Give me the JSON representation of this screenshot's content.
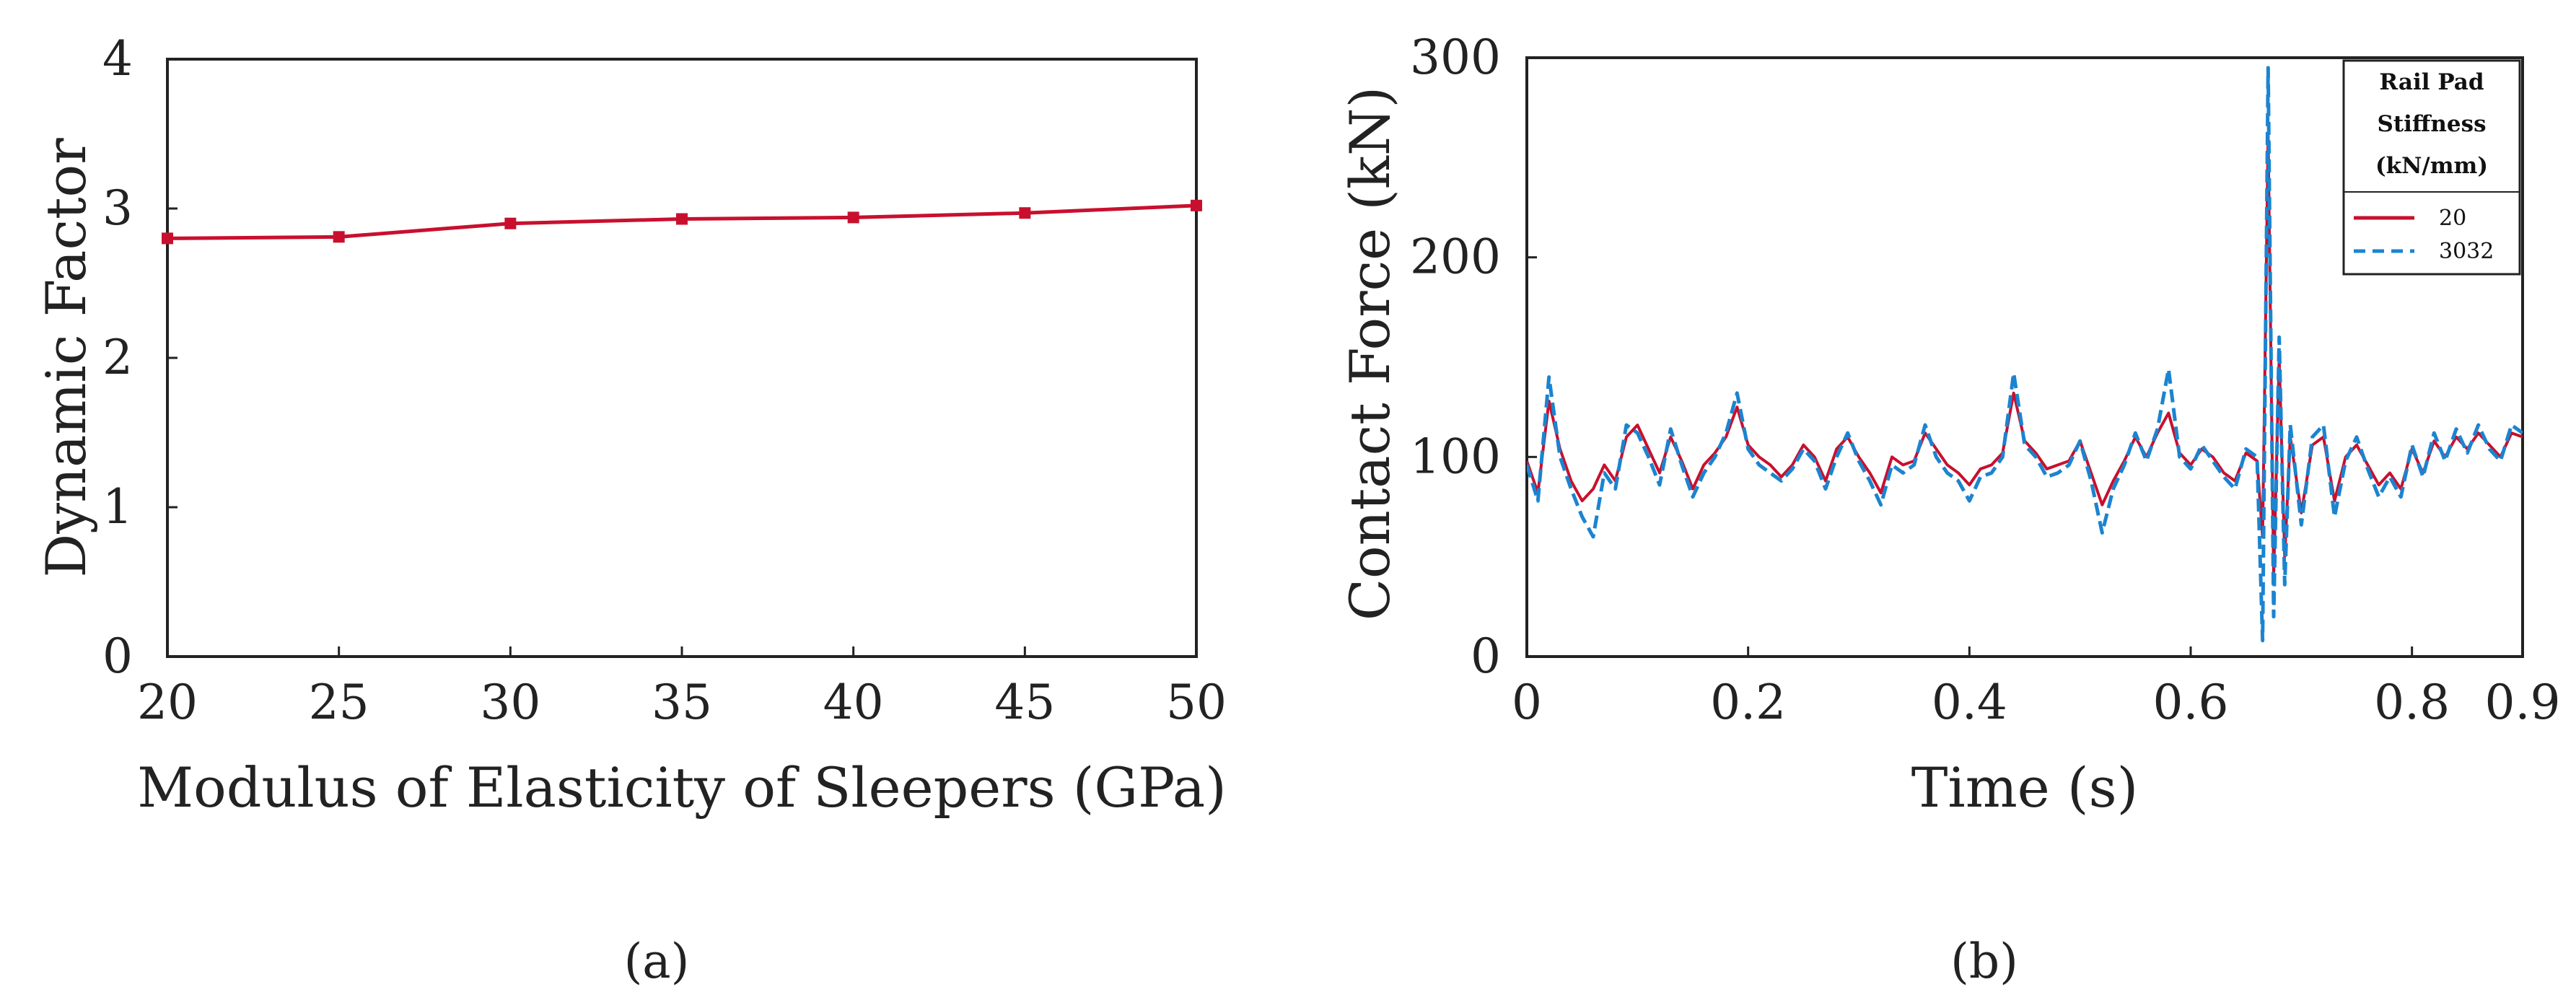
{
  "colors": {
    "series_red": "#C8102E",
    "series_blue": "#1B84D0",
    "axis": "#222222"
  },
  "chart_data": [
    {
      "type": "line",
      "caption": "(a)",
      "title": "",
      "xlabel": "Modulus of Elasticity of Sleepers (GPa)",
      "ylabel": "Dynamic Factor",
      "xlim": [
        20,
        50
      ],
      "ylim": [
        0,
        4
      ],
      "xticks": [
        "20",
        "25",
        "30",
        "35",
        "40",
        "45",
        "50"
      ],
      "yticks": [
        "0",
        "1",
        "2",
        "3",
        "4"
      ],
      "series": [
        {
          "name": "Dynamic Factor",
          "x": [
            20,
            25,
            30,
            35,
            40,
            45,
            50
          ],
          "values": [
            2.8,
            2.81,
            2.9,
            2.93,
            2.94,
            2.97,
            3.02
          ],
          "marker": "square"
        }
      ]
    },
    {
      "type": "line",
      "caption": "(b)",
      "title": "",
      "xlabel": "Time (s)",
      "ylabel": "Contact Force (kN)",
      "xlim": [
        0,
        0.9
      ],
      "ylim": [
        0,
        300
      ],
      "xticks": [
        "0",
        "0.2",
        "0.4",
        "0.6",
        "0.8",
        "0.9"
      ],
      "yticks": [
        "0",
        "100",
        "200",
        "300"
      ],
      "legend": {
        "title_lines": [
          "Rail Pad",
          "Stiffness",
          "(kN/mm)"
        ],
        "placement": "top-right"
      },
      "series": [
        {
          "name": "20",
          "style": "solid",
          "t": [
            0,
            0.01,
            0.02,
            0.03,
            0.04,
            0.05,
            0.06,
            0.07,
            0.08,
            0.09,
            0.1,
            0.11,
            0.12,
            0.13,
            0.14,
            0.15,
            0.16,
            0.17,
            0.18,
            0.19,
            0.2,
            0.21,
            0.22,
            0.23,
            0.24,
            0.25,
            0.26,
            0.27,
            0.28,
            0.29,
            0.3,
            0.31,
            0.32,
            0.33,
            0.34,
            0.35,
            0.36,
            0.37,
            0.38,
            0.39,
            0.4,
            0.41,
            0.42,
            0.43,
            0.44,
            0.45,
            0.46,
            0.47,
            0.48,
            0.49,
            0.5,
            0.51,
            0.52,
            0.53,
            0.54,
            0.55,
            0.56,
            0.57,
            0.58,
            0.59,
            0.6,
            0.61,
            0.62,
            0.63,
            0.64,
            0.65,
            0.66,
            0.665,
            0.67,
            0.675,
            0.68,
            0.685,
            0.69,
            0.7,
            0.71,
            0.72,
            0.73,
            0.74,
            0.75,
            0.76,
            0.77,
            0.78,
            0.79,
            0.8,
            0.81,
            0.82,
            0.83,
            0.84,
            0.85,
            0.86,
            0.87,
            0.88,
            0.89,
            0.9
          ],
          "values": [
            98,
            82,
            128,
            104,
            88,
            78,
            84,
            96,
            88,
            110,
            116,
            104,
            92,
            110,
            98,
            84,
            96,
            102,
            110,
            125,
            106,
            100,
            96,
            90,
            96,
            106,
            100,
            88,
            104,
            110,
            100,
            92,
            82,
            100,
            96,
            98,
            112,
            104,
            96,
            92,
            86,
            94,
            96,
            102,
            132,
            108,
            102,
            94,
            96,
            98,
            108,
            92,
            76,
            88,
            98,
            110,
            100,
            112,
            122,
            102,
            96,
            104,
            100,
            92,
            88,
            102,
            98,
            60,
            262,
            40,
            150,
            50,
            110,
            72,
            106,
            110,
            78,
            100,
            106,
            96,
            86,
            92,
            84,
            104,
            92,
            108,
            100,
            110,
            104,
            112,
            106,
            100,
            112,
            110
          ]
        },
        {
          "name": "3032",
          "style": "dashed",
          "t": [
            0,
            0.01,
            0.02,
            0.03,
            0.04,
            0.05,
            0.06,
            0.07,
            0.08,
            0.09,
            0.1,
            0.11,
            0.12,
            0.13,
            0.14,
            0.15,
            0.16,
            0.17,
            0.18,
            0.19,
            0.2,
            0.21,
            0.22,
            0.23,
            0.24,
            0.25,
            0.26,
            0.27,
            0.28,
            0.29,
            0.3,
            0.31,
            0.32,
            0.33,
            0.34,
            0.35,
            0.36,
            0.37,
            0.38,
            0.39,
            0.4,
            0.41,
            0.42,
            0.43,
            0.44,
            0.45,
            0.46,
            0.47,
            0.48,
            0.49,
            0.5,
            0.51,
            0.52,
            0.53,
            0.54,
            0.55,
            0.56,
            0.57,
            0.58,
            0.59,
            0.6,
            0.61,
            0.62,
            0.63,
            0.64,
            0.65,
            0.66,
            0.665,
            0.67,
            0.675,
            0.68,
            0.685,
            0.69,
            0.7,
            0.71,
            0.72,
            0.73,
            0.74,
            0.75,
            0.76,
            0.77,
            0.78,
            0.79,
            0.8,
            0.81,
            0.82,
            0.83,
            0.84,
            0.85,
            0.86,
            0.87,
            0.88,
            0.89,
            0.9
          ],
          "values": [
            96,
            78,
            140,
            100,
            84,
            70,
            60,
            92,
            84,
            116,
            112,
            100,
            86,
            114,
            96,
            80,
            92,
            100,
            112,
            132,
            104,
            96,
            92,
            88,
            94,
            104,
            98,
            84,
            100,
            112,
            98,
            88,
            76,
            96,
            92,
            96,
            116,
            100,
            92,
            88,
            78,
            90,
            92,
            100,
            142,
            106,
            100,
            90,
            92,
            96,
            108,
            88,
            62,
            84,
            96,
            112,
            98,
            114,
            144,
            100,
            94,
            106,
            98,
            90,
            84,
            104,
            100,
            8,
            295,
            20,
            160,
            36,
            116,
            66,
            110,
            116,
            70,
            98,
            110,
            94,
            80,
            90,
            80,
            106,
            90,
            112,
            98,
            114,
            102,
            116,
            104,
            98,
            116,
            112
          ]
        }
      ]
    }
  ]
}
